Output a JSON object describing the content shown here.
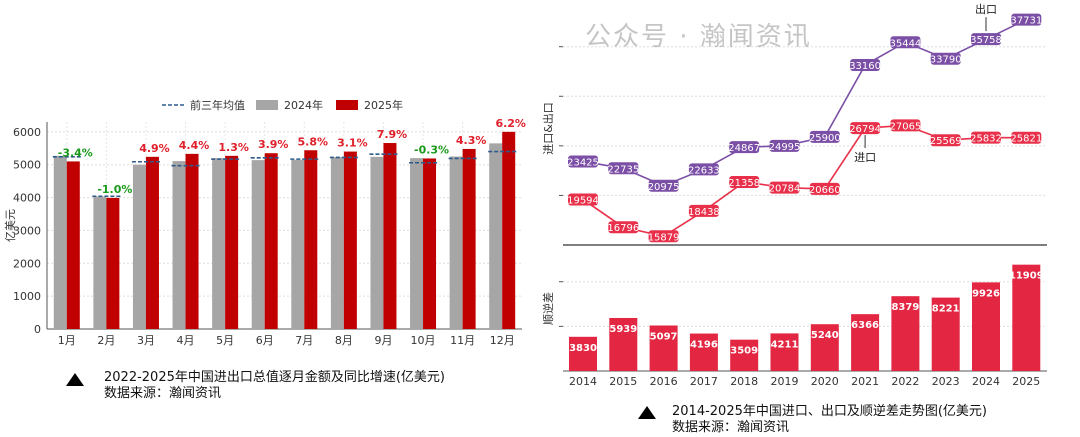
{
  "chart_data": [
    {
      "type": "bar",
      "title": "2022-2025年中国进出口总值逐月金额及同比增速(亿美元)",
      "source": "数据来源：瀚闻资讯",
      "ylabel": "亿美元",
      "ylim": [
        0,
        6300
      ],
      "yticks": [
        0,
        1000,
        2000,
        3000,
        4000,
        5000,
        6000
      ],
      "grid": true,
      "legend_position": "top",
      "categories": [
        "1月",
        "2月",
        "3月",
        "4月",
        "5月",
        "6月",
        "7月",
        "8月",
        "9月",
        "10月",
        "11月",
        "12月"
      ],
      "series": [
        {
          "name": "前三年均值",
          "kind": "dashed-line",
          "color": "#2f5b8c",
          "values": [
            5240,
            4040,
            5090,
            4970,
            5170,
            5210,
            5170,
            5220,
            5320,
            5060,
            5190,
            5400
          ]
        },
        {
          "name": "2024年",
          "color": "#a6a6a6",
          "values": [
            5270,
            4030,
            5000,
            5110,
            5200,
            5140,
            5150,
            5230,
            5240,
            5200,
            5250,
            5650
          ]
        },
        {
          "name": "2025年",
          "color": "#c00000",
          "values": [
            5100,
            3990,
            5240,
            5330,
            5270,
            5350,
            5440,
            5400,
            5660,
            5190,
            5480,
            6000
          ]
        }
      ],
      "growth_labels": [
        "-3.4%",
        "-1.0%",
        "4.9%",
        "4.4%",
        "1.3%",
        "3.9%",
        "5.8%",
        "3.1%",
        "7.9%",
        "-0.3%",
        "4.3%",
        "6.2%"
      ],
      "positive_color": "#e0202a",
      "negative_color": "#1a9a1a"
    },
    {
      "type": "line",
      "title": "2014-2025年中国进口、出口及顺逆差走势图(亿美元)",
      "source": "数据来源：瀚闻资讯",
      "ylabel": "进口&出口",
      "ylim": [
        15000,
        38500
      ],
      "grid": true,
      "x": [
        "2014",
        "2015",
        "2016",
        "2017",
        "2018",
        "2019",
        "2020",
        "2021",
        "2022",
        "2023",
        "2024",
        "2025"
      ],
      "series": [
        {
          "name": "出口",
          "color": "#7b4fa6",
          "values": [
            23425,
            22735,
            20975,
            22633,
            24867,
            24995,
            25900,
            33160,
            35444,
            33790,
            35758,
            37731
          ]
        },
        {
          "name": "进口",
          "color": "#e8304a",
          "values": [
            19594,
            16796,
            15879,
            18438,
            21358,
            20784,
            20660,
            26794,
            27065,
            25569,
            25832,
            25821
          ]
        }
      ]
    },
    {
      "type": "bar",
      "ylabel": "顺逆差",
      "ylim": [
        0,
        14000
      ],
      "grid": true,
      "categories": [
        "2014",
        "2015",
        "2016",
        "2017",
        "2018",
        "2019",
        "2020",
        "2021",
        "2022",
        "2023",
        "2024",
        "2025"
      ],
      "values": [
        3830,
        5939,
        5097,
        4196,
        3509,
        4211,
        5240,
        6366,
        8379,
        8221,
        9926,
        11909
      ],
      "color": "#e32642"
    }
  ],
  "watermark": "公众号 · 瀚闻资讯"
}
